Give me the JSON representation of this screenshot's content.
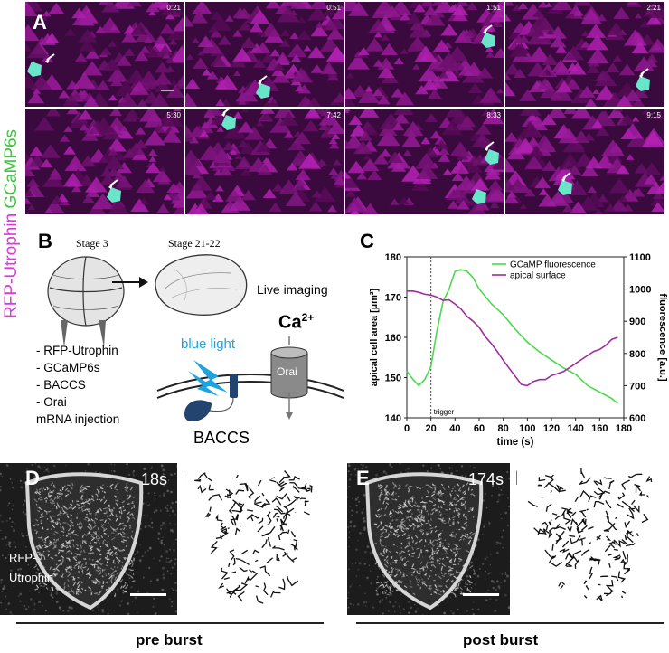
{
  "panel_a": {
    "letter": "A",
    "ylabel_part1": "RFP-Utrophin",
    "ylabel_part2": "GCaMP6s",
    "timestamps": [
      "0:21",
      "0:51",
      "1:51",
      "2:21",
      "5:30",
      "7:42",
      "8:33",
      "9:15"
    ]
  },
  "panel_b": {
    "letter": "B",
    "stage_left": "Stage 3",
    "stage_right": "Stage 21-22",
    "live_imaging": "Live imaging",
    "list": [
      "- RFP-Utrophin",
      "- GCaMP6s",
      "- BACCS",
      "- Orai",
      "mRNA injection"
    ],
    "blue_light": "blue light",
    "ca": "Ca",
    "ca_sup": "2+",
    "orai": "Orai",
    "baccs": "BACCS",
    "colors": {
      "blue": "#1ea3de",
      "dark_blue": "#23446f"
    }
  },
  "panel_c": {
    "letter": "C"
  },
  "chart_data": {
    "type": "line",
    "xlabel": "time (s)",
    "ylabel_left": "apical cell area [µm²]",
    "ylabel_right": "fluorescence [a.u.]",
    "xlim": [
      0,
      180
    ],
    "ylim_left": [
      140,
      180
    ],
    "ylim_right": [
      600,
      1100
    ],
    "xticks": [
      0,
      20,
      40,
      60,
      80,
      100,
      120,
      140,
      160,
      180
    ],
    "yticks_left": [
      140,
      150,
      160,
      170,
      180
    ],
    "yticks_right": [
      600,
      700,
      800,
      900,
      1000,
      1100
    ],
    "annotation": {
      "text": "trigger",
      "x": 20
    },
    "legend_position": "top-right",
    "series": [
      {
        "name": "GCaMP fluorescence",
        "axis": "right",
        "color": "#4cd94c",
        "x": [
          0,
          5,
          10,
          15,
          20,
          25,
          30,
          35,
          40,
          45,
          50,
          55,
          60,
          70,
          80,
          90,
          100,
          110,
          120,
          130,
          140,
          150,
          160,
          170,
          175
        ],
        "y": [
          745,
          720,
          700,
          720,
          760,
          870,
          960,
          1000,
          1055,
          1060,
          1055,
          1035,
          1000,
          955,
          920,
          875,
          835,
          805,
          780,
          755,
          735,
          700,
          680,
          660,
          645
        ]
      },
      {
        "name": "apical surface",
        "axis": "left",
        "color": "#a02ca0",
        "x": [
          0,
          5,
          10,
          15,
          20,
          25,
          30,
          35,
          40,
          45,
          50,
          55,
          60,
          65,
          70,
          75,
          80,
          85,
          90,
          95,
          100,
          105,
          110,
          115,
          120,
          125,
          130,
          135,
          140,
          145,
          150,
          155,
          160,
          165,
          170,
          175
        ],
        "y": [
          171.5,
          171.5,
          171.2,
          170.7,
          170.5,
          170.0,
          169.2,
          169.3,
          168.3,
          167.0,
          165.2,
          164.0,
          162.5,
          160.2,
          158.5,
          156.5,
          154.3,
          152.3,
          150.3,
          148.3,
          148.0,
          149.0,
          149.5,
          149.5,
          150.5,
          151.0,
          151.5,
          152.5,
          153.5,
          154.5,
          155.5,
          156.5,
          157.0,
          158.0,
          159.5,
          160.0
        ]
      }
    ]
  },
  "panel_d": {
    "letter": "D",
    "letter_prime": "D′",
    "time": "18s",
    "stain": "RFP-\nUtrophin",
    "caption": "pre burst"
  },
  "panel_e": {
    "letter": "E",
    "letter_prime": "E′",
    "time": "174s",
    "caption": "post burst"
  }
}
